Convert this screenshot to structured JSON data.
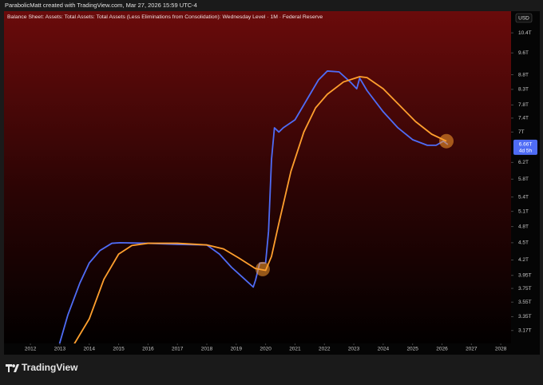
{
  "attribution": "ParabolicMatt created with TradingView.com, Mar 27, 2026 15:59 UTC-4",
  "watermark": "TradingView",
  "chart_data": {
    "type": "line",
    "title": "Balance Sheet: Assets: Total Assets: Total Assets (Less Eliminations from Consolidation): Wednesday Level · 1M · Federal Reserve",
    "currency": "USD",
    "log_scale": true,
    "grid": false,
    "xlim": [
      2011.1,
      2028.35
    ],
    "xticks": [
      2012,
      2013,
      2014,
      2015,
      2016,
      2017,
      2018,
      2019,
      2020,
      2021,
      2022,
      2023,
      2024,
      2025,
      2026,
      2027,
      2028
    ],
    "ylim": [
      3.01,
      11.34
    ],
    "yticks": [
      {
        "value": 10.4,
        "label": "10.4T"
      },
      {
        "value": 9.6,
        "label": "9.6T"
      },
      {
        "value": 8.8,
        "label": "8.8T"
      },
      {
        "value": 8.3,
        "label": "8.3T"
      },
      {
        "value": 7.8,
        "label": "7.8T"
      },
      {
        "value": 7.4,
        "label": "7.4T"
      },
      {
        "value": 7,
        "label": "7T"
      },
      {
        "value": 6.2,
        "label": "6.2T"
      },
      {
        "value": 5.8,
        "label": "5.8T"
      },
      {
        "value": 5.4,
        "label": "5.4T"
      },
      {
        "value": 5.1,
        "label": "5.1T"
      },
      {
        "value": 4.8,
        "label": "4.8T"
      },
      {
        "value": 4.5,
        "label": "4.5T"
      },
      {
        "value": 4.2,
        "label": "4.2T"
      },
      {
        "value": 3.95,
        "label": "3.95T"
      },
      {
        "value": 3.75,
        "label": "3.75T"
      },
      {
        "value": 3.55,
        "label": "3.55T"
      },
      {
        "value": 3.35,
        "label": "3.35T"
      },
      {
        "value": 3.17,
        "label": "3.17T"
      }
    ],
    "price_label": {
      "value": 6.66,
      "label": "6.66T"
    },
    "countdown": "4d 5h",
    "series": [
      {
        "color": "#4f6cf5",
        "x": [
          2012.9,
          2013.27,
          2013.68,
          2014.0,
          2014.36,
          2014.77,
          2015.05,
          2016.0,
          2017.0,
          2018.0,
          2018.43,
          2018.84,
          2019.24,
          2019.58,
          2019.66,
          2019.8,
          2020.0,
          2020.1,
          2020.2,
          2020.3,
          2020.45,
          2020.6,
          2021.0,
          2021.4,
          2021.8,
          2022.1,
          2022.5,
          2022.9,
          2023.1,
          2023.2,
          2023.45,
          2024.0,
          2024.5,
          2025.0,
          2025.5,
          2025.8,
          2026.05,
          2026.2
        ],
        "values": [
          2.9,
          3.37,
          3.83,
          4.15,
          4.36,
          4.49,
          4.5,
          4.49,
          4.47,
          4.46,
          4.3,
          4.08,
          3.91,
          3.77,
          3.88,
          4.15,
          4.15,
          4.71,
          6.27,
          7.12,
          7.0,
          7.12,
          7.35,
          7.96,
          8.62,
          8.93,
          8.9,
          8.53,
          8.32,
          8.68,
          8.26,
          7.59,
          7.12,
          6.79,
          6.64,
          6.64,
          6.75,
          6.66
        ]
      },
      {
        "color": "#ff9f2e",
        "x": [
          2013.4,
          2013.5,
          2014.0,
          2014.5,
          2015.0,
          2015.45,
          2016.0,
          2017.0,
          2018.0,
          2018.57,
          2019.1,
          2019.65,
          2020.0,
          2020.2,
          2020.45,
          2020.86,
          2021.3,
          2021.7,
          2022.1,
          2022.65,
          2023.2,
          2023.45,
          2024.0,
          2024.5,
          2025.1,
          2025.65,
          2026.15
        ],
        "values": [
          2.95,
          3.01,
          3.32,
          3.89,
          4.3,
          4.45,
          4.49,
          4.49,
          4.46,
          4.39,
          4.23,
          4.06,
          4.03,
          4.26,
          4.86,
          5.98,
          7.0,
          7.71,
          8.14,
          8.55,
          8.73,
          8.7,
          8.32,
          7.84,
          7.3,
          6.94,
          6.75
        ]
      }
    ],
    "highlights": [
      {
        "x": 2019.9,
        "value": 4.05
      },
      {
        "x": 2026.15,
        "value": 6.75
      }
    ]
  }
}
